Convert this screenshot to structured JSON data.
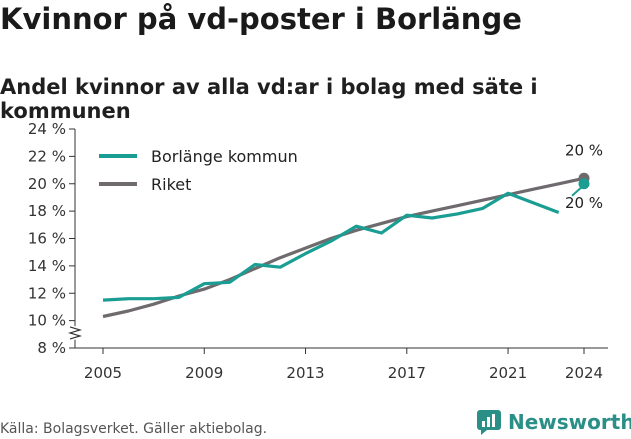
{
  "title": "Kvinnor på vd-poster i Borlänge",
  "subtitle": "Andel kvinnor av alla vd:ar i bolag med säte i kommunen",
  "source": "Källa: Bolagsverket. Gäller aktiebolag.",
  "brand": {
    "name": "Newsworthy",
    "color": "#2a8f87"
  },
  "colors": {
    "borlange": "#1a9e93",
    "riket": "#6e6a6e"
  },
  "chart_data": {
    "type": "line",
    "x": [
      2005,
      2006,
      2007,
      2008,
      2009,
      2010,
      2011,
      2012,
      2013,
      2014,
      2015,
      2016,
      2017,
      2018,
      2019,
      2020,
      2021,
      2022,
      2023,
      2024
    ],
    "xticks": [
      2005,
      2009,
      2013,
      2017,
      2021,
      2024
    ],
    "ylim": [
      8,
      24
    ],
    "yticks": [
      8,
      10,
      12,
      14,
      16,
      18,
      20,
      22,
      24
    ],
    "ytick_labels": [
      "8 %",
      "10 %",
      "12 %",
      "14 %",
      "16 %",
      "18 %",
      "20 %",
      "22 %",
      "24 %"
    ],
    "axis_break": true,
    "grid": false,
    "legend_position": "top-left",
    "series": [
      {
        "name": "Borlänge kommun",
        "values": [
          11.5,
          11.6,
          11.6,
          11.7,
          12.7,
          12.8,
          14.1,
          13.9,
          14.9,
          15.8,
          16.9,
          16.4,
          17.7,
          17.5,
          17.8,
          18.2,
          19.3,
          18.6,
          17.9,
          20.0
        ],
        "end_label": "20 %"
      },
      {
        "name": "Riket",
        "values": [
          10.3,
          10.7,
          11.2,
          11.8,
          12.3,
          13.0,
          13.8,
          14.6,
          15.3,
          16.0,
          16.6,
          17.1,
          17.6,
          18.0,
          18.4,
          18.8,
          19.2,
          19.6,
          20.0,
          20.4
        ],
        "end_label": "20 %"
      }
    ]
  }
}
